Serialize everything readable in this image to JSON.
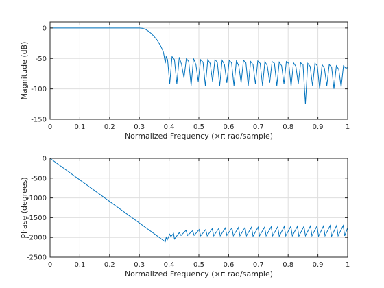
{
  "colors": {
    "series": "#0072bd",
    "grid": "#dedede",
    "axes": "#262626",
    "background": "#ffffff"
  },
  "chart_data": [
    {
      "type": "line",
      "title": "",
      "xlabel": "Normalized Frequency  (×π rad/sample)",
      "ylabel": "Magnitude (dB)",
      "xlim": [
        0,
        1
      ],
      "ylim": [
        -150,
        10
      ],
      "xticks": [
        0,
        0.1,
        0.2,
        0.3,
        0.4,
        0.5,
        0.6,
        0.7,
        0.8,
        0.9,
        1
      ],
      "xtick_labels": [
        "0",
        "0.1",
        "0.2",
        "0.3",
        "0.4",
        "0.5",
        "0.6",
        "0.7",
        "0.8",
        "0.9",
        "1"
      ],
      "yticks": [
        0,
        -50,
        -100,
        -150
      ],
      "ytick_labels": [
        "0",
        "-50",
        "-100",
        "-150"
      ],
      "grid": true,
      "series": [
        {
          "x": [
            0,
            0.1,
            0.2,
            0.3,
            0.31,
            0.32,
            0.33,
            0.34,
            0.35,
            0.36,
            0.37,
            0.38,
            0.383,
            0.387,
            0.39,
            0.395,
            0.402,
            0.41,
            0.418,
            0.426,
            0.434,
            0.442,
            0.45,
            0.458,
            0.466,
            0.474,
            0.482,
            0.49,
            0.498,
            0.506,
            0.514,
            0.522,
            0.53,
            0.538,
            0.546,
            0.554,
            0.562,
            0.57,
            0.578,
            0.586,
            0.594,
            0.602,
            0.61,
            0.618,
            0.626,
            0.634,
            0.642,
            0.65,
            0.658,
            0.666,
            0.674,
            0.682,
            0.69,
            0.698,
            0.706,
            0.714,
            0.722,
            0.73,
            0.738,
            0.746,
            0.754,
            0.762,
            0.77,
            0.778,
            0.786,
            0.794,
            0.802,
            0.81,
            0.818,
            0.826,
            0.834,
            0.842,
            0.85,
            0.858,
            0.866,
            0.874,
            0.882,
            0.89,
            0.898,
            0.906,
            0.914,
            0.922,
            0.93,
            0.938,
            0.946,
            0.954,
            0.962,
            0.97,
            0.978,
            0.986,
            0.994,
            1.0
          ],
          "y": [
            0,
            0,
            0,
            0,
            -0.5,
            -2,
            -5,
            -9,
            -14,
            -20,
            -28,
            -38,
            -45,
            -58,
            -47,
            -52,
            -92,
            -47,
            -52,
            -92,
            -48,
            -60,
            -82,
            -50,
            -55,
            -95,
            -50,
            -60,
            -88,
            -52,
            -56,
            -95,
            -52,
            -58,
            -88,
            -52,
            -56,
            -95,
            -53,
            -60,
            -90,
            -53,
            -57,
            -95,
            -54,
            -62,
            -90,
            -53,
            -57,
            -95,
            -55,
            -60,
            -92,
            -54,
            -58,
            -95,
            -55,
            -62,
            -90,
            -55,
            -58,
            -95,
            -56,
            -62,
            -92,
            -55,
            -58,
            -96,
            -57,
            -63,
            -92,
            -57,
            -60,
            -125,
            -58,
            -63,
            -95,
            -58,
            -62,
            -100,
            -60,
            -66,
            -95,
            -60,
            -64,
            -100,
            -62,
            -68,
            -97,
            -62,
            -66,
            -65
          ]
        }
      ]
    },
    {
      "type": "line",
      "title": "",
      "xlabel": "Normalized Frequency  (×π rad/sample)",
      "ylabel": "Phase (degrees)",
      "xlim": [
        0,
        1
      ],
      "ylim": [
        -2500,
        0
      ],
      "xticks": [
        0,
        0.1,
        0.2,
        0.3,
        0.4,
        0.5,
        0.6,
        0.7,
        0.8,
        0.9,
        1
      ],
      "xtick_labels": [
        "0",
        "0.1",
        "0.2",
        "0.3",
        "0.4",
        "0.5",
        "0.6",
        "0.7",
        "0.8",
        "0.9",
        "1"
      ],
      "yticks": [
        0,
        -500,
        -1000,
        -1500,
        -2000,
        -2500
      ],
      "ytick_labels": [
        "0",
        "-500",
        "-1000",
        "-1500",
        "-2000",
        "-2500"
      ],
      "grid": true,
      "series": [
        {
          "x": [
            0,
            0.387,
            0.39,
            0.394,
            0.402,
            0.406,
            0.415,
            0.418,
            0.434,
            0.44,
            0.457,
            0.462,
            0.479,
            0.484,
            0.501,
            0.506,
            0.523,
            0.528,
            0.545,
            0.55,
            0.567,
            0.572,
            0.589,
            0.594,
            0.611,
            0.616,
            0.633,
            0.638,
            0.655,
            0.66,
            0.677,
            0.682,
            0.699,
            0.704,
            0.721,
            0.726,
            0.743,
            0.748,
            0.765,
            0.77,
            0.787,
            0.792,
            0.809,
            0.814,
            0.831,
            0.836,
            0.853,
            0.858,
            0.875,
            0.88,
            0.897,
            0.902,
            0.919,
            0.924,
            0.941,
            0.946,
            0.963,
            0.968,
            0.985,
            0.99,
            1.0
          ],
          "y": [
            0,
            -2110,
            -2000,
            -2060,
            -1920,
            -1980,
            -1900,
            -2040,
            -1880,
            -1950,
            -1820,
            -1950,
            -1830,
            -1950,
            -1800,
            -1960,
            -1800,
            -1960,
            -1780,
            -1960,
            -1770,
            -1960,
            -1760,
            -1950,
            -1760,
            -1960,
            -1750,
            -1960,
            -1750,
            -1960,
            -1740,
            -1970,
            -1740,
            -1960,
            -1740,
            -1960,
            -1730,
            -1960,
            -1730,
            -1970,
            -1720,
            -1960,
            -1720,
            -1960,
            -1720,
            -1970,
            -1720,
            -1960,
            -1710,
            -1960,
            -1710,
            -1970,
            -1710,
            -1960,
            -1700,
            -1970,
            -1700,
            -1960,
            -1700,
            -1960,
            -1750
          ]
        }
      ]
    }
  ]
}
